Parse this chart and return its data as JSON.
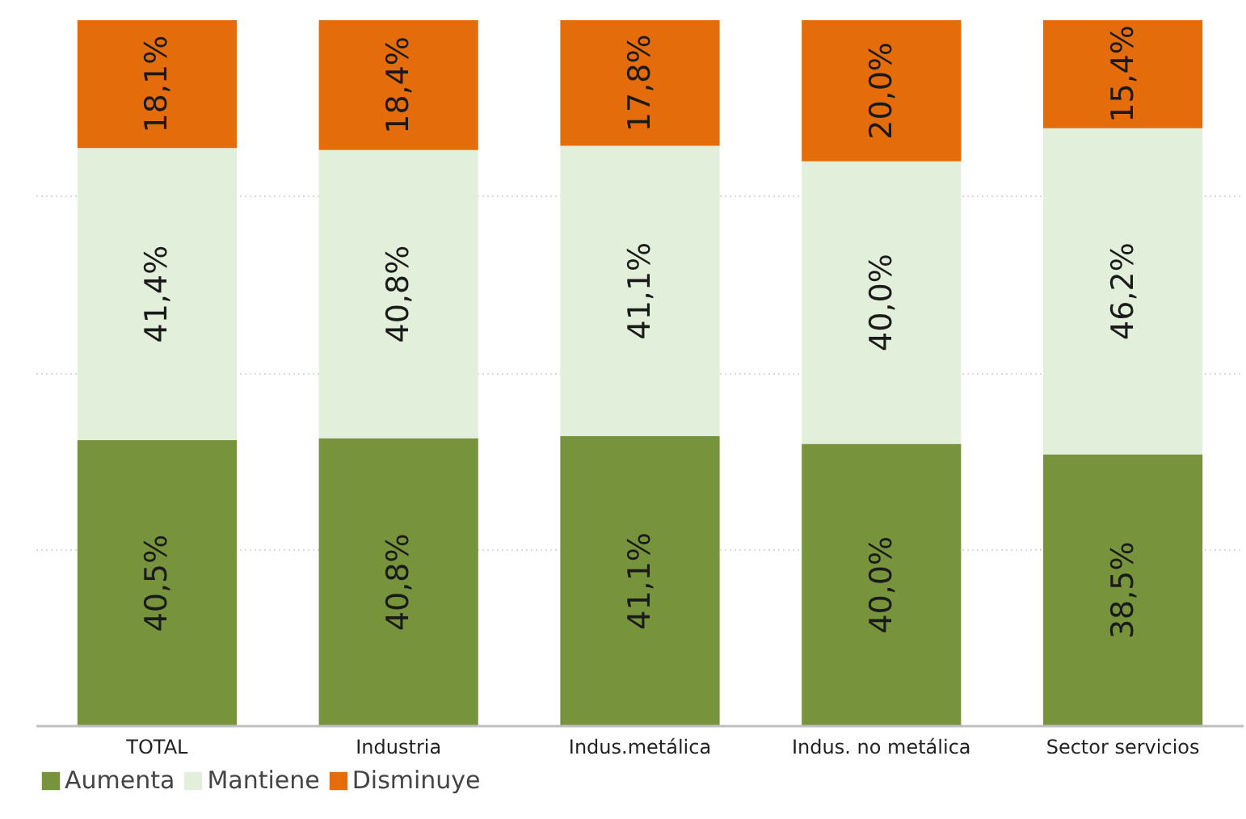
{
  "chart_data": {
    "type": "bar",
    "stacked": true,
    "categories": [
      "TOTAL",
      "Industria",
      "Indus.metálica",
      "Indus. no metálica",
      "Sector servicios"
    ],
    "series": [
      {
        "name": "Aumenta",
        "color": "#77933c",
        "values": [
          40.5,
          40.8,
          41.1,
          40.0,
          38.5
        ],
        "value_labels": [
          "40,5%",
          "40,8%",
          "41,1%",
          "40,0%",
          "38,5%"
        ]
      },
      {
        "name": "Mantiene",
        "color": "#e2efda",
        "values": [
          41.4,
          40.8,
          41.1,
          40.0,
          46.2
        ],
        "value_labels": [
          "41,4%",
          "40,8%",
          "41,1%",
          "40,0%",
          "46,2%"
        ]
      },
      {
        "name": "Disminuye",
        "color": "#e46c0a",
        "values": [
          18.1,
          18.4,
          17.8,
          20.0,
          15.4
        ],
        "value_labels": [
          "18,1%",
          "18,4%",
          "17,8%",
          "20,0%",
          "15,4%"
        ]
      }
    ],
    "ylim": [
      0,
      100
    ],
    "yticks": [
      {
        "value": 25,
        "label": null
      },
      {
        "value": 50,
        "label": null
      },
      {
        "value": 75,
        "label": null
      }
    ],
    "tick_labels": "x",
    "grid": "y",
    "legend": "bottom left"
  }
}
